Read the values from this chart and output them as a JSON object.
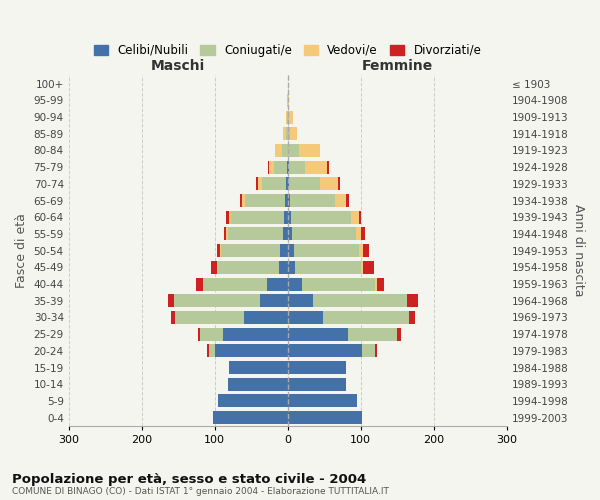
{
  "age_groups": [
    "0-4",
    "5-9",
    "10-14",
    "15-19",
    "20-24",
    "25-29",
    "30-34",
    "35-39",
    "40-44",
    "45-49",
    "50-54",
    "55-59",
    "60-64",
    "65-69",
    "70-74",
    "75-79",
    "80-84",
    "85-89",
    "90-94",
    "95-99",
    "100+"
  ],
  "birth_years": [
    "1999-2003",
    "1994-1998",
    "1989-1993",
    "1984-1988",
    "1979-1983",
    "1974-1978",
    "1969-1973",
    "1964-1968",
    "1959-1963",
    "1954-1958",
    "1949-1953",
    "1944-1948",
    "1939-1943",
    "1934-1938",
    "1929-1933",
    "1924-1928",
    "1919-1923",
    "1914-1918",
    "1909-1913",
    "1904-1908",
    "≤ 1903"
  ],
  "colors": {
    "celibi": "#4472a8",
    "coniugati": "#b5c99a",
    "vedovi": "#f5c97a",
    "divorziati": "#cc2222"
  },
  "maschi": {
    "celibi": [
      102,
      95,
      82,
      80,
      100,
      88,
      60,
      38,
      28,
      12,
      10,
      7,
      5,
      4,
      3,
      1,
      0,
      0,
      0,
      0,
      0
    ],
    "coniugati": [
      0,
      0,
      0,
      0,
      8,
      32,
      95,
      118,
      88,
      85,
      82,
      75,
      72,
      55,
      32,
      18,
      8,
      2,
      1,
      0,
      0
    ],
    "vedovi": [
      0,
      0,
      0,
      0,
      0,
      0,
      0,
      0,
      0,
      0,
      1,
      2,
      3,
      4,
      6,
      6,
      10,
      5,
      2,
      1,
      0
    ],
    "divorziati": [
      0,
      0,
      0,
      0,
      2,
      3,
      5,
      8,
      10,
      8,
      4,
      3,
      4,
      3,
      2,
      2,
      0,
      0,
      0,
      0,
      0
    ]
  },
  "femmine": {
    "celibi": [
      102,
      95,
      80,
      80,
      102,
      82,
      48,
      35,
      20,
      10,
      8,
      6,
      5,
      3,
      2,
      2,
      1,
      0,
      0,
      0,
      0
    ],
    "coniugati": [
      0,
      0,
      0,
      0,
      18,
      68,
      118,
      128,
      100,
      90,
      90,
      87,
      82,
      62,
      42,
      22,
      15,
      3,
      2,
      0,
      0
    ],
    "vedovi": [
      0,
      0,
      0,
      0,
      0,
      0,
      0,
      0,
      2,
      3,
      5,
      8,
      10,
      15,
      25,
      30,
      28,
      10,
      5,
      2,
      1
    ],
    "divorziati": [
      0,
      0,
      0,
      0,
      3,
      5,
      8,
      15,
      10,
      15,
      8,
      5,
      4,
      4,
      2,
      2,
      0,
      0,
      0,
      0,
      0
    ]
  },
  "title": "Popolazione per età, sesso e stato civile - 2004",
  "subtitle": "COMUNE DI BINAGO (CO) - Dati ISTAT 1° gennaio 2004 - Elaborazione TUTTITALIA.IT",
  "xlabel_left": "Maschi",
  "xlabel_right": "Femmine",
  "ylabel_left": "Fasce di età",
  "ylabel_right": "Anni di nascita",
  "xlim": 300,
  "legend_labels": [
    "Celibi/Nubili",
    "Coniugati/e",
    "Vedovi/e",
    "Divorziati/e"
  ],
  "background_color": "#f5f5f0",
  "grid_color": "#cccccc"
}
